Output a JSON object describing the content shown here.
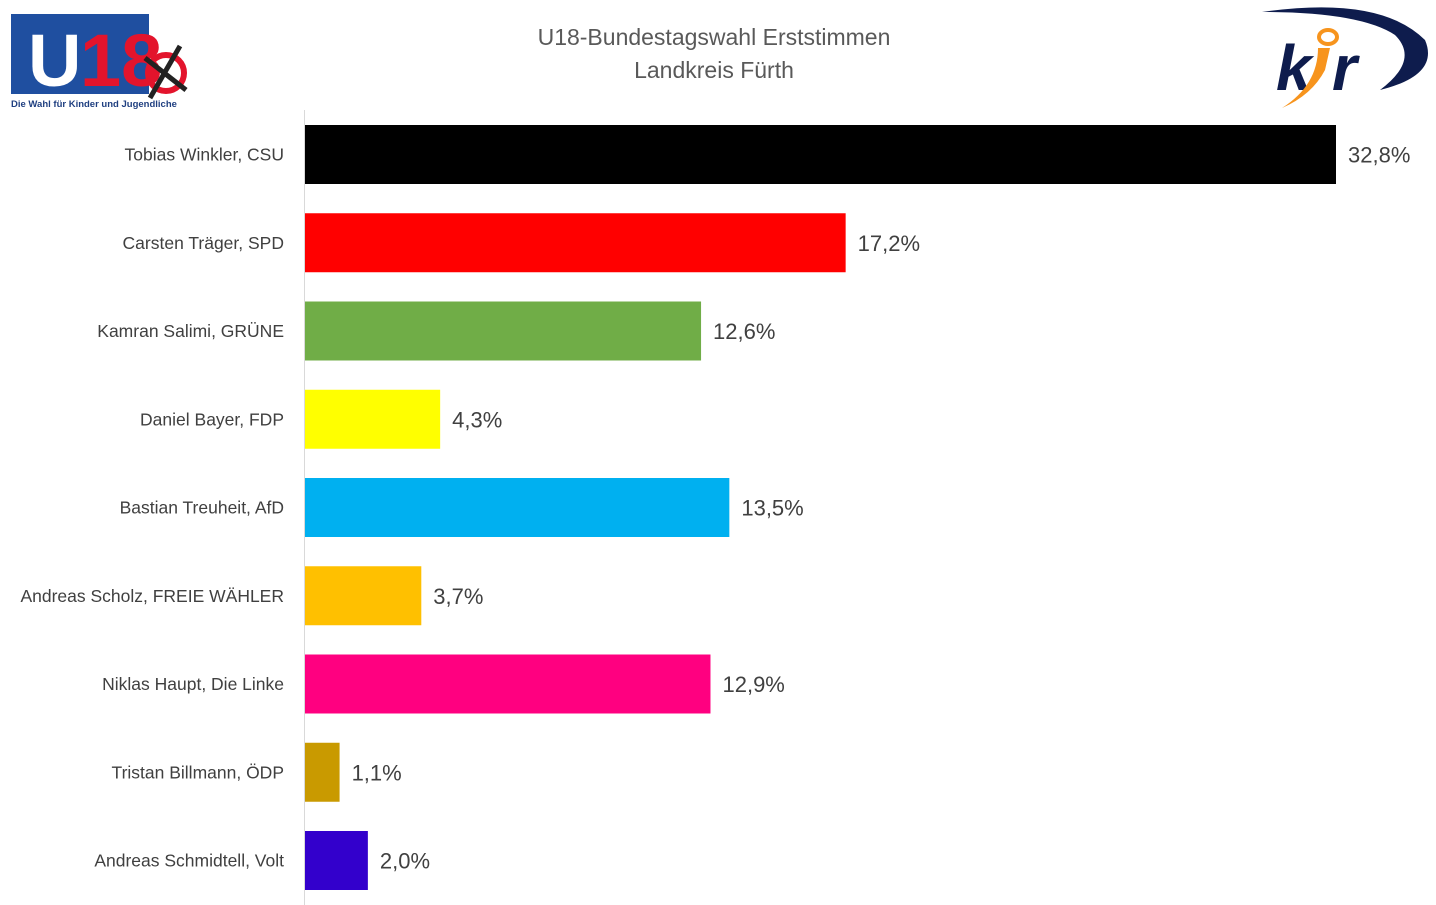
{
  "chart_data": {
    "type": "bar",
    "orientation": "horizontal",
    "title": "U18-Bundestagswahl Erststimmen",
    "subtitle": "Landkreis Fürth",
    "xlabel": "",
    "ylabel": "",
    "xlim": [
      0,
      32.8
    ],
    "grid": false,
    "legend": "none",
    "categories": [
      "Tobias Winkler, CSU",
      "Carsten Träger, SPD",
      "Kamran Salimi, GRÜNE",
      "Daniel Bayer, FDP",
      "Bastian Treuheit, AfD",
      "Andreas Scholz, FREIE WÄHLER",
      "Niklas Haupt, Die Linke",
      "Tristan Billmann, ÖDP",
      "Andreas Schmidtell, Volt"
    ],
    "values": [
      32.8,
      17.2,
      12.6,
      4.3,
      13.5,
      3.7,
      12.9,
      1.1,
      2.0
    ],
    "value_labels": [
      "32,8%",
      "17,2%",
      "12,6%",
      "4,3%",
      "13,5%",
      "3,7%",
      "12,9%",
      "1,1%",
      "2,0%"
    ],
    "colors": [
      "#000000",
      "#FF0000",
      "#70AD47",
      "#FFFF00",
      "#00B0F0",
      "#FFC000",
      "#FF0080",
      "#C99A00",
      "#3300CC"
    ]
  },
  "logos": {
    "left": {
      "text": "U18",
      "tagline": "Die Wahl für Kinder und Jugendliche"
    },
    "right": {
      "text": "kjr"
    }
  }
}
